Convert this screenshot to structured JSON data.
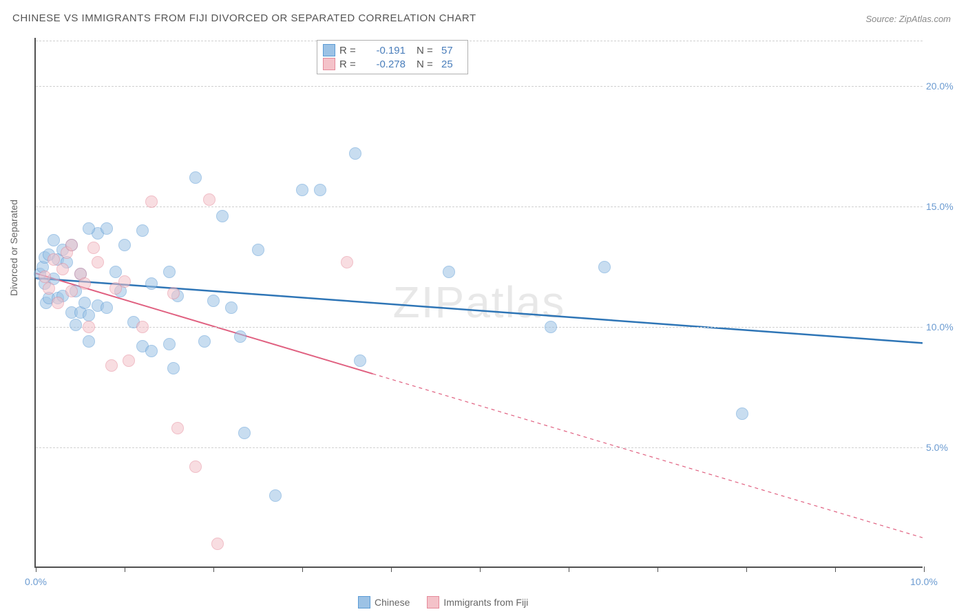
{
  "title": "CHINESE VS IMMIGRANTS FROM FIJI DIVORCED OR SEPARATED CORRELATION CHART",
  "source": "Source: ZipAtlas.com",
  "ylabel": "Divorced or Separated",
  "watermark": {
    "prefix": "ZIP",
    "suffix": "atlas"
  },
  "chart": {
    "type": "scatter",
    "xlim": [
      0,
      10
    ],
    "ylim": [
      0,
      22
    ],
    "xtick_positions": [
      0,
      1,
      2,
      3,
      4,
      5,
      6,
      7,
      8,
      9,
      10
    ],
    "xtick_labels": {
      "0": "0.0%",
      "10": "10.0%"
    },
    "ytick_positions": [
      5,
      10,
      15,
      20
    ],
    "ytick_labels": [
      "5.0%",
      "10.0%",
      "15.0%",
      "20.0%"
    ],
    "gridline_color": "#d0d0d0",
    "axis_color": "#505050",
    "background_color": "#ffffff",
    "point_radius": 9,
    "point_opacity": 0.55,
    "series": [
      {
        "name": "Chinese",
        "fill": "#9cc2e5",
        "stroke": "#5b9bd5",
        "trend_color": "#2e75b6",
        "trend_width": 2.5,
        "trend": {
          "x1": 0,
          "y1": 12.0,
          "x2": 10,
          "y2": 9.3,
          "solid_until_x": 10
        },
        "R": "-0.191",
        "N": "57",
        "points": [
          [
            0.05,
            12.2
          ],
          [
            0.08,
            12.5
          ],
          [
            0.1,
            12.9
          ],
          [
            0.1,
            11.8
          ],
          [
            0.12,
            11.0
          ],
          [
            0.15,
            13.0
          ],
          [
            0.15,
            11.2
          ],
          [
            0.2,
            12.0
          ],
          [
            0.2,
            13.6
          ],
          [
            0.25,
            12.8
          ],
          [
            0.25,
            11.2
          ],
          [
            0.3,
            13.2
          ],
          [
            0.3,
            11.3
          ],
          [
            0.35,
            12.7
          ],
          [
            0.4,
            10.6
          ],
          [
            0.4,
            13.4
          ],
          [
            0.45,
            11.5
          ],
          [
            0.45,
            10.1
          ],
          [
            0.5,
            12.2
          ],
          [
            0.5,
            10.6
          ],
          [
            0.55,
            11.0
          ],
          [
            0.6,
            9.4
          ],
          [
            0.6,
            10.5
          ],
          [
            0.7,
            13.9
          ],
          [
            0.7,
            10.9
          ],
          [
            0.8,
            14.1
          ],
          [
            0.8,
            10.8
          ],
          [
            0.9,
            12.3
          ],
          [
            0.95,
            11.5
          ],
          [
            1.0,
            13.4
          ],
          [
            1.1,
            10.2
          ],
          [
            1.2,
            14.0
          ],
          [
            1.2,
            9.2
          ],
          [
            1.3,
            11.8
          ],
          [
            1.3,
            9.0
          ],
          [
            1.5,
            12.3
          ],
          [
            1.5,
            9.3
          ],
          [
            1.55,
            8.3
          ],
          [
            1.6,
            11.3
          ],
          [
            1.8,
            16.2
          ],
          [
            1.9,
            9.4
          ],
          [
            2.0,
            11.1
          ],
          [
            2.1,
            14.6
          ],
          [
            2.2,
            10.8
          ],
          [
            2.3,
            9.6
          ],
          [
            2.35,
            5.6
          ],
          [
            2.5,
            13.2
          ],
          [
            2.7,
            3.0
          ],
          [
            3.0,
            15.7
          ],
          [
            3.2,
            15.7
          ],
          [
            3.6,
            17.2
          ],
          [
            3.65,
            8.6
          ],
          [
            4.65,
            12.3
          ],
          [
            5.8,
            10.0
          ],
          [
            6.4,
            12.5
          ],
          [
            7.95,
            6.4
          ],
          [
            0.6,
            14.1
          ]
        ]
      },
      {
        "name": "Immigrants from Fiji",
        "fill": "#f4c2c9",
        "stroke": "#e58a9a",
        "trend_color": "#e06080",
        "trend_width": 2,
        "trend": {
          "x1": 0,
          "y1": 12.2,
          "x2": 10,
          "y2": 1.2,
          "solid_until_x": 3.8
        },
        "R": "-0.278",
        "N": "25",
        "points": [
          [
            0.1,
            12.1
          ],
          [
            0.15,
            11.6
          ],
          [
            0.2,
            12.8
          ],
          [
            0.25,
            11.0
          ],
          [
            0.3,
            12.4
          ],
          [
            0.35,
            13.1
          ],
          [
            0.4,
            11.5
          ],
          [
            0.4,
            13.4
          ],
          [
            0.5,
            12.2
          ],
          [
            0.55,
            11.8
          ],
          [
            0.6,
            10.0
          ],
          [
            0.65,
            13.3
          ],
          [
            0.7,
            12.7
          ],
          [
            0.85,
            8.4
          ],
          [
            0.9,
            11.6
          ],
          [
            1.0,
            11.9
          ],
          [
            1.05,
            8.6
          ],
          [
            1.2,
            10.0
          ],
          [
            1.3,
            15.2
          ],
          [
            1.55,
            11.4
          ],
          [
            1.6,
            5.8
          ],
          [
            1.8,
            4.2
          ],
          [
            1.95,
            15.3
          ],
          [
            2.05,
            1.0
          ],
          [
            3.5,
            12.7
          ]
        ]
      }
    ]
  },
  "legend_top": [
    {
      "swatch_fill": "#9cc2e5",
      "swatch_stroke": "#5b9bd5",
      "r_label": "R =",
      "r_val": "-0.191",
      "n_label": "N =",
      "n_val": "57"
    },
    {
      "swatch_fill": "#f4c2c9",
      "swatch_stroke": "#e58a9a",
      "r_label": "R =",
      "r_val": "-0.278",
      "n_label": "N =",
      "n_val": "25"
    }
  ],
  "legend_bottom": [
    {
      "swatch_fill": "#9cc2e5",
      "swatch_stroke": "#5b9bd5",
      "label": "Chinese"
    },
    {
      "swatch_fill": "#f4c2c9",
      "swatch_stroke": "#e58a9a",
      "label": "Immigrants from Fiji"
    }
  ]
}
